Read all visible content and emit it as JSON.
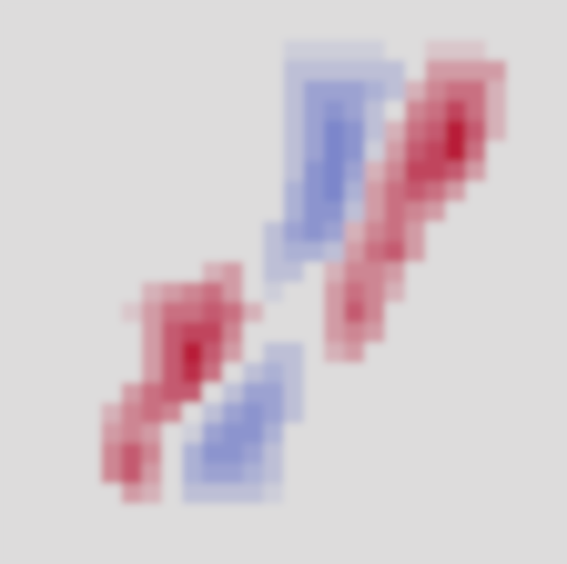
{
  "chart_data": {
    "type": "heatmap",
    "vlim": [
      -1,
      1
    ],
    "colors": [
      "#3b4cc0",
      "#dddcdc",
      "#b40426"
    ],
    "values": [
      [
        0,
        0,
        0,
        0,
        0,
        0,
        0,
        0,
        0,
        0,
        0,
        0,
        0,
        0,
        0,
        0,
        0,
        0,
        0,
        0,
        0,
        0,
        0,
        0,
        0,
        0,
        0,
        0
      ],
      [
        0,
        0,
        0,
        0,
        0,
        0,
        0,
        0,
        0,
        0,
        0,
        0,
        0,
        0,
        0,
        0,
        0,
        0,
        0,
        0,
        0,
        0,
        0,
        0,
        0,
        0,
        0,
        0
      ],
      [
        0,
        0,
        0,
        0,
        0,
        0,
        0,
        0,
        0,
        0,
        0,
        0,
        0,
        0,
        -0.1,
        -0.1,
        -0.1,
        -0.1,
        -0.1,
        0,
        0,
        0.1,
        0.1,
        0.1,
        0,
        0,
        0,
        0
      ],
      [
        0,
        0,
        0,
        0,
        0,
        0,
        0,
        0,
        0,
        0,
        0,
        0,
        0,
        0,
        -0.2,
        -0.2,
        -0.2,
        -0.2,
        -0.2,
        -0.2,
        0,
        0.3,
        0.3,
        0.3,
        0.3,
        0,
        0,
        0
      ],
      [
        0,
        0,
        0,
        0,
        0,
        0,
        0,
        0,
        0,
        0,
        0,
        0,
        0,
        0,
        -0.2,
        -0.4,
        -0.4,
        -0.4,
        -0.3,
        -0.2,
        0.2,
        0.4,
        0.5,
        0.5,
        0.2,
        0,
        0,
        0
      ],
      [
        0,
        0,
        0,
        0,
        0,
        0,
        0,
        0,
        0,
        0,
        0,
        0,
        0,
        0,
        -0.2,
        -0.4,
        -0.5,
        -0.4,
        -0.2,
        0,
        0.4,
        0.5,
        0.7,
        0.5,
        0.2,
        0,
        0,
        0
      ],
      [
        0,
        0,
        0,
        0,
        0,
        0,
        0,
        0,
        0,
        0,
        0,
        0,
        0,
        0,
        -0.2,
        -0.4,
        -0.6,
        -0.5,
        -0.2,
        0.2,
        0.5,
        0.6,
        0.9,
        0.6,
        0.2,
        0,
        0,
        0
      ],
      [
        0,
        0,
        0,
        0,
        0,
        0,
        0,
        0,
        0,
        0,
        0,
        0,
        0,
        0,
        -0.2,
        -0.4,
        -0.6,
        -0.5,
        -0.1,
        0.3,
        0.6,
        0.7,
        0.9,
        0.5,
        0,
        0,
        0,
        0
      ],
      [
        0,
        0,
        0,
        0,
        0,
        0,
        0,
        0,
        0,
        0,
        0,
        0,
        0,
        0,
        -0.2,
        -0.5,
        -0.6,
        -0.4,
        0.2,
        0.4,
        0.7,
        0.7,
        0.6,
        0.3,
        0,
        0,
        0,
        0
      ],
      [
        0,
        0,
        0,
        0,
        0,
        0,
        0,
        0,
        0,
        0,
        0,
        0,
        0,
        0,
        -0.3,
        -0.5,
        -0.6,
        -0.3,
        0.3,
        0.5,
        0.6,
        0.5,
        0.3,
        0,
        0,
        0,
        0,
        0
      ],
      [
        0,
        0,
        0,
        0,
        0,
        0,
        0,
        0,
        0,
        0,
        0,
        0,
        0,
        0,
        -0.3,
        -0.5,
        -0.5,
        -0.2,
        0.3,
        0.5,
        0.4,
        0.3,
        0,
        0,
        0,
        0,
        0,
        0
      ],
      [
        0,
        0,
        0,
        0,
        0,
        0,
        0,
        0,
        0,
        0,
        0,
        0,
        0,
        -0.2,
        -0.4,
        -0.5,
        -0.4,
        0.2,
        0.4,
        0.5,
        0.3,
        0,
        0,
        0,
        0,
        0,
        0,
        0
      ],
      [
        0,
        0,
        0,
        0,
        0,
        0,
        0,
        0,
        0,
        0,
        0,
        0,
        0,
        -0.2,
        -0.3,
        -0.3,
        -0.2,
        0.3,
        0.5,
        0.6,
        0.3,
        0,
        0,
        0,
        0,
        0,
        0,
        0
      ],
      [
        0,
        0,
        0,
        0,
        0,
        0,
        0,
        0,
        0,
        0,
        0.2,
        0.3,
        0,
        -0.2,
        -0.2,
        0,
        0.2,
        0.4,
        0.4,
        0.3,
        0,
        0,
        0,
        0,
        0,
        0,
        0,
        0
      ],
      [
        0,
        0,
        0,
        0,
        0,
        0,
        0,
        0.2,
        0.3,
        0.4,
        0.5,
        0.3,
        0,
        -0.1,
        0,
        0,
        0.3,
        0.5,
        0.4,
        0.2,
        0,
        0,
        0,
        0,
        0,
        0,
        0,
        0
      ],
      [
        0,
        0,
        0,
        0,
        0,
        0,
        0.1,
        0.3,
        0.5,
        0.5,
        0.6,
        0.5,
        0.2,
        0,
        0,
        0,
        0.3,
        0.6,
        0.4,
        0,
        0,
        0,
        0,
        0,
        0,
        0,
        0,
        0
      ],
      [
        0,
        0,
        0,
        0,
        0,
        0,
        0,
        0.3,
        0.6,
        0.7,
        0.7,
        0.4,
        0,
        0,
        0,
        0,
        0.3,
        0.4,
        0.3,
        0,
        0,
        0,
        0,
        0,
        0,
        0,
        0,
        0
      ],
      [
        0,
        0,
        0,
        0,
        0,
        0,
        0,
        0.3,
        0.6,
        0.9,
        0.6,
        0.3,
        0,
        -0.2,
        -0.2,
        0,
        0.2,
        0.3,
        0,
        0,
        0,
        0,
        0,
        0,
        0,
        0,
        0,
        0
      ],
      [
        0,
        0,
        0,
        0,
        0,
        0,
        0,
        0.3,
        0.6,
        0.8,
        0.5,
        0,
        -0.2,
        -0.3,
        -0.2,
        0,
        0,
        0,
        0,
        0,
        0,
        0,
        0,
        0,
        0,
        0,
        0,
        0
      ],
      [
        0,
        0,
        0,
        0,
        0,
        0,
        0.3,
        0.5,
        0.6,
        0.6,
        0,
        -0.2,
        -0.4,
        -0.4,
        -0.2,
        0,
        0,
        0,
        0,
        0,
        0,
        0,
        0,
        0,
        0,
        0,
        0,
        0
      ],
      [
        0,
        0,
        0,
        0,
        0,
        0.2,
        0.4,
        0.5,
        0.4,
        0,
        -0.2,
        -0.4,
        -0.5,
        -0.4,
        -0.2,
        0,
        0,
        0,
        0,
        0,
        0,
        0,
        0,
        0,
        0,
        0,
        0,
        0
      ],
      [
        0,
        0,
        0,
        0,
        0,
        0.3,
        0.4,
        0.3,
        0,
        -0.1,
        -0.4,
        -0.5,
        -0.5,
        -0.3,
        0,
        0,
        0,
        0,
        0,
        0,
        0,
        0,
        0,
        0,
        0,
        0,
        0,
        0
      ],
      [
        0,
        0,
        0,
        0,
        0,
        0.4,
        0.6,
        0.4,
        0,
        -0.3,
        -0.5,
        -0.5,
        -0.4,
        -0.2,
        0,
        0,
        0,
        0,
        0,
        0,
        0,
        0,
        0,
        0,
        0,
        0,
        0,
        0
      ],
      [
        0,
        0,
        0,
        0,
        0,
        0.4,
        0.6,
        0.3,
        0,
        -0.3,
        -0.4,
        -0.4,
        -0.3,
        -0.2,
        0,
        0,
        0,
        0,
        0,
        0,
        0,
        0,
        0,
        0,
        0,
        0,
        0,
        0
      ],
      [
        0,
        0,
        0,
        0,
        0,
        0,
        0.3,
        0.2,
        0,
        -0.2,
        -0.2,
        -0.2,
        -0.2,
        -0.1,
        0,
        0,
        0,
        0,
        0,
        0,
        0,
        0,
        0,
        0,
        0,
        0,
        0,
        0
      ],
      [
        0,
        0,
        0,
        0,
        0,
        0,
        0,
        0,
        0,
        0,
        0,
        0,
        0,
        0,
        0,
        0,
        0,
        0,
        0,
        0,
        0,
        0,
        0,
        0,
        0,
        0,
        0,
        0
      ],
      [
        0,
        0,
        0,
        0,
        0,
        0,
        0,
        0,
        0,
        0,
        0,
        0,
        0,
        0,
        0,
        0,
        0,
        0,
        0,
        0,
        0,
        0,
        0,
        0,
        0,
        0,
        0,
        0
      ],
      [
        0,
        0,
        0,
        0,
        0,
        0,
        0,
        0,
        0,
        0,
        0,
        0,
        0,
        0,
        0,
        0,
        0,
        0,
        0,
        0,
        0,
        0,
        0,
        0,
        0,
        0,
        0,
        0
      ]
    ]
  }
}
